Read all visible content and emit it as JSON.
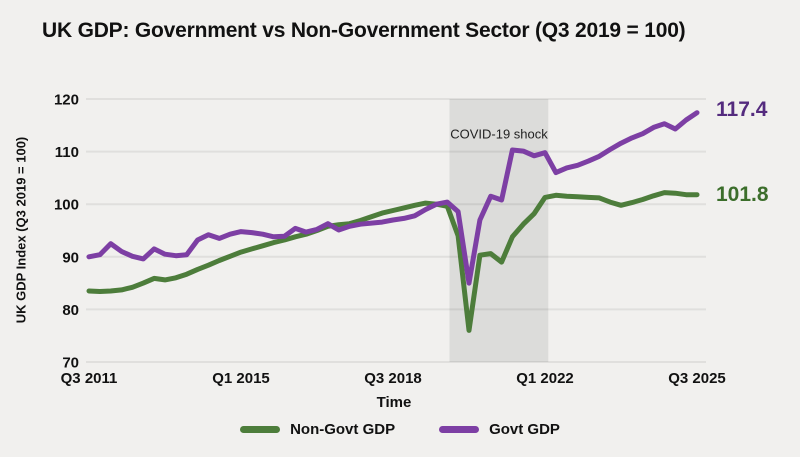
{
  "title": "UK GDP: Government vs Non-Government Sector (Q3 2019 = 100)",
  "colors": {
    "background": "#f1f0ee",
    "text": "#111111",
    "gridline": "rgba(0,0,0,0.07)",
    "covid_band": "#dcdcda"
  },
  "chart_data": {
    "type": "line",
    "title": "UK GDP: Government vs Non-Government Sector (Q3 2019 = 100)",
    "xlabel": "Time",
    "ylabel": "UK GDP Index (Q3 2019 = 100)",
    "ylim": [
      70,
      120
    ],
    "yticks": [
      70,
      80,
      90,
      100,
      110,
      120
    ],
    "x_start": "2011 Q3",
    "x_end": "2025 Q3",
    "x_frequency": "quarterly",
    "grid": true,
    "legend_position": "bottom",
    "xticks": [
      {
        "label": "Q3 2011",
        "idx": 0
      },
      {
        "label": "Q1 2015",
        "idx": 14
      },
      {
        "label": "Q3 2018",
        "idx": 28
      },
      {
        "label": "Q1 2022",
        "idx": 42
      },
      {
        "label": "Q3 2025",
        "idx": 56
      }
    ],
    "annotation": {
      "text": "COVID-19 shock",
      "band_start_quarter": "2019 Q4",
      "band_end_quarter": "2022 Q1",
      "band_start_idx": 33.2,
      "band_end_idx": 42.3
    },
    "series": [
      {
        "name": "Non-Govt GDP",
        "color": "#4d7d3b",
        "label_color": "#3c6e2b",
        "end_label": "101.8",
        "values": [
          83.5,
          83.4,
          83.5,
          83.7,
          84.2,
          85.0,
          85.9,
          85.6,
          86.0,
          86.7,
          87.6,
          88.4,
          89.3,
          90.1,
          90.9,
          91.5,
          92.1,
          92.7,
          93.2,
          93.8,
          94.3,
          95.0,
          95.8,
          96.1,
          96.3,
          96.9,
          97.6,
          98.3,
          98.8,
          99.3,
          99.8,
          100.2,
          100.0,
          99.6,
          94.0,
          76.0,
          90.3,
          90.6,
          89.0,
          93.8,
          96.2,
          98.2,
          101.3,
          101.7,
          101.5,
          101.4,
          101.3,
          101.2,
          100.4,
          99.8,
          100.3,
          100.9,
          101.6,
          102.2,
          102.1,
          101.8,
          101.8
        ]
      },
      {
        "name": "Govt GDP",
        "color": "#7d3fa4",
        "label_color": "#542b7e",
        "end_label": "117.4",
        "values": [
          90.0,
          90.4,
          92.5,
          91.0,
          90.1,
          89.6,
          91.5,
          90.5,
          90.2,
          90.4,
          93.2,
          94.2,
          93.5,
          94.3,
          94.8,
          94.6,
          94.3,
          93.8,
          93.9,
          95.4,
          94.7,
          95.2,
          96.3,
          95.1,
          95.8,
          96.2,
          96.4,
          96.6,
          97.0,
          97.3,
          97.8,
          99.0,
          100.0,
          100.4,
          98.6,
          85.0,
          97.0,
          101.5,
          100.8,
          110.3,
          110.1,
          109.2,
          109.8,
          106.0,
          106.9,
          107.4,
          108.2,
          109.1,
          110.4,
          111.6,
          112.6,
          113.4,
          114.6,
          115.3,
          114.3,
          116.0,
          117.4
        ]
      }
    ]
  }
}
